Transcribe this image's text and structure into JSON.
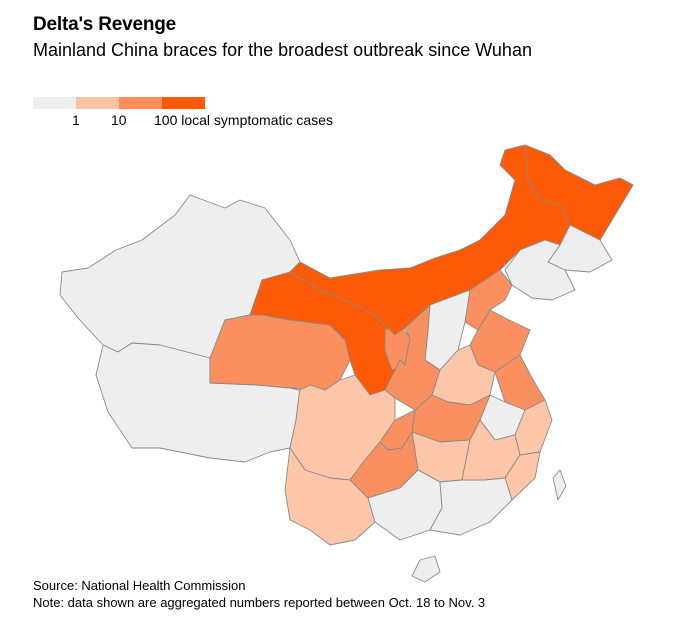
{
  "header": {
    "title": "Delta's Revenge",
    "subtitle": "Mainland China braces for the broadest outbreak since Wuhan"
  },
  "legend": {
    "colors": [
      "#eeeeee",
      "#fcc3a3",
      "#fb8e5b",
      "#fb5a05"
    ],
    "labels": [
      "1",
      "10",
      "100 local symptomatic cases"
    ]
  },
  "map": {
    "levels": {
      "none": "#eeeeee",
      "low": "#fdc6a8",
      "mid": "#fa9060",
      "high": "#fc5a06"
    },
    "border_color": "#8a8a8a"
  },
  "footer": {
    "source": "Source: National Health Commission",
    "note": "Note: data shown are aggregated numbers reported between Oct. 18 to Nov. 3"
  }
}
